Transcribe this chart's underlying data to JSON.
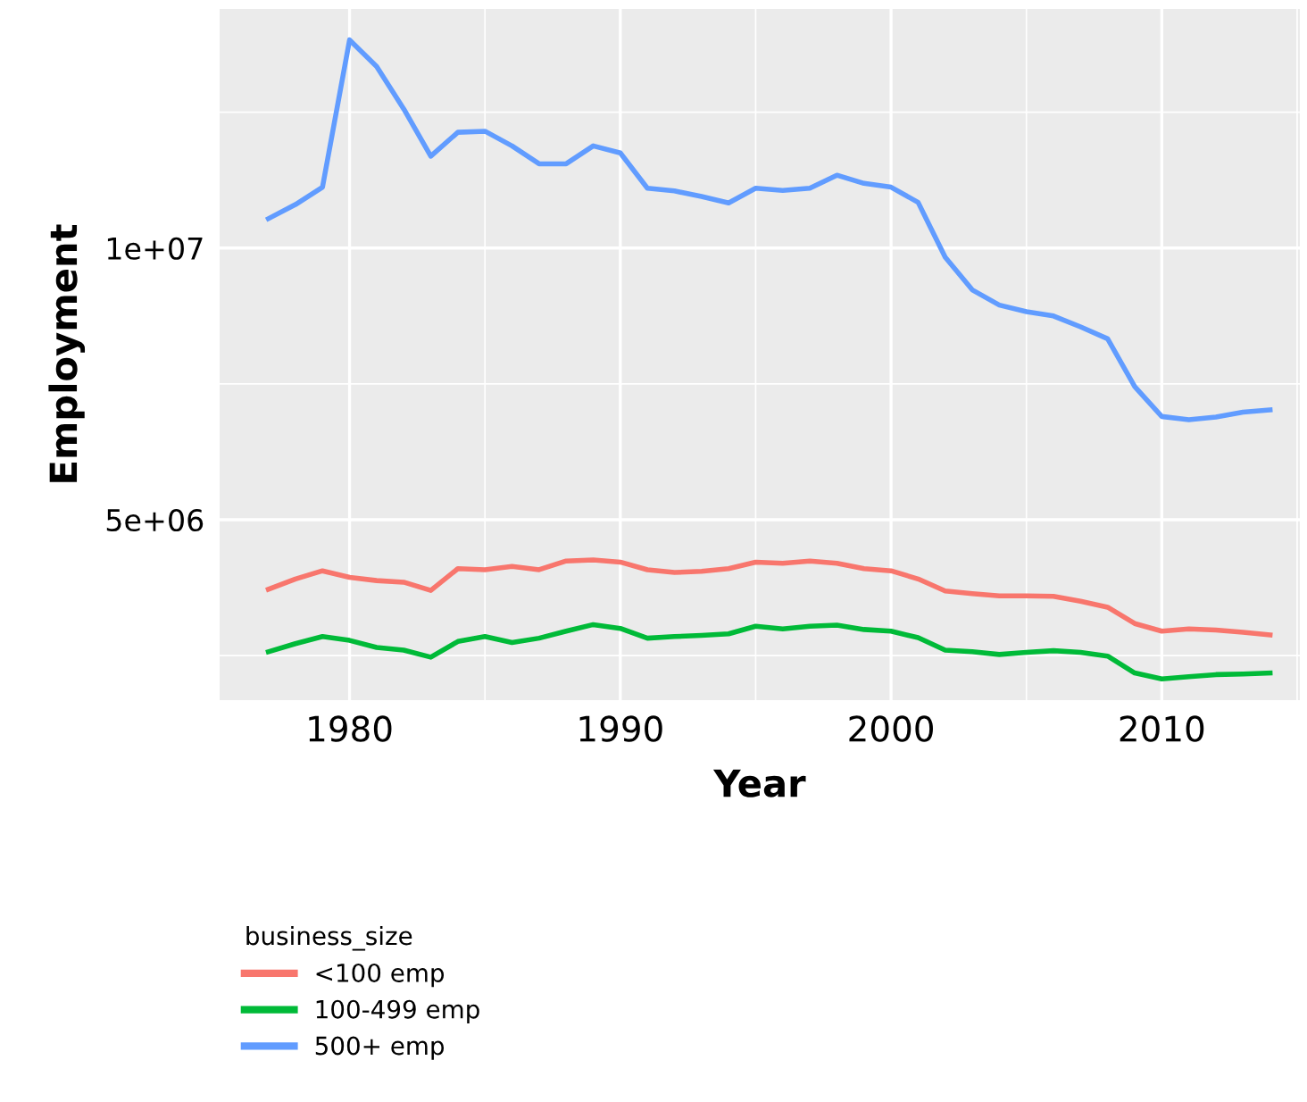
{
  "chart_data": {
    "type": "line",
    "xlabel": "Year",
    "ylabel": "Employment",
    "legend_title": "business_size",
    "legend": "bottom left",
    "grid": true,
    "x": [
      1977,
      1978,
      1979,
      1980,
      1981,
      1982,
      1983,
      1984,
      1985,
      1986,
      1987,
      1988,
      1989,
      1990,
      1991,
      1992,
      1993,
      1994,
      1995,
      1996,
      1997,
      1998,
      1999,
      2000,
      2001,
      2002,
      2003,
      2004,
      2005,
      2006,
      2007,
      2008,
      2009,
      2010,
      2011,
      2012,
      2013,
      2014
    ],
    "xlim": [
      1975.2,
      2015.1
    ],
    "xticks": [
      1980,
      {
        "value": 1985,
        "label": null
      },
      1990,
      {
        "value": 1995,
        "label": null
      },
      2000,
      {
        "value": 2005,
        "label": null
      },
      2010,
      {
        "value": 2015,
        "label": null
      }
    ],
    "ylim": [
      1680000,
      14400000
    ],
    "yticks": [
      {
        "value": 2500000,
        "label": null
      },
      {
        "value": 5000000,
        "label": "5e+06"
      },
      {
        "value": 7500000,
        "label": null
      },
      {
        "value": 10000000,
        "label": "1e+07"
      },
      {
        "value": 12500000,
        "label": null
      }
    ],
    "series": [
      {
        "name": "<100 emp",
        "color": "#f8766d",
        "values": [
          3720000,
          3910000,
          4060000,
          3940000,
          3880000,
          3850000,
          3700000,
          4100000,
          4080000,
          4140000,
          4080000,
          4240000,
          4260000,
          4220000,
          4080000,
          4030000,
          4050000,
          4100000,
          4220000,
          4200000,
          4240000,
          4200000,
          4100000,
          4060000,
          3910000,
          3690000,
          3640000,
          3600000,
          3600000,
          3590000,
          3500000,
          3390000,
          3090000,
          2950000,
          2990000,
          2970000,
          2930000,
          2880000
        ]
      },
      {
        "name": "100-499 emp",
        "color": "#00ba38",
        "values": [
          2570000,
          2720000,
          2850000,
          2780000,
          2650000,
          2600000,
          2470000,
          2760000,
          2850000,
          2740000,
          2820000,
          2950000,
          3070000,
          3000000,
          2820000,
          2850000,
          2870000,
          2900000,
          3040000,
          2990000,
          3040000,
          3060000,
          2980000,
          2950000,
          2830000,
          2600000,
          2570000,
          2520000,
          2560000,
          2590000,
          2560000,
          2490000,
          2180000,
          2070000,
          2110000,
          2150000,
          2160000,
          2180000
        ]
      },
      {
        "name": "500+ emp",
        "color": "#619cff",
        "values": [
          10540000,
          10800000,
          11120000,
          13830000,
          13340000,
          12560000,
          11690000,
          12130000,
          12150000,
          11880000,
          11550000,
          11550000,
          11880000,
          11750000,
          11100000,
          11050000,
          10950000,
          10830000,
          11100000,
          11060000,
          11100000,
          11340000,
          11190000,
          11120000,
          10840000,
          9830000,
          9230000,
          8950000,
          8830000,
          8750000,
          8550000,
          8330000,
          7450000,
          6900000,
          6840000,
          6890000,
          6980000,
          7020000
        ]
      }
    ]
  }
}
